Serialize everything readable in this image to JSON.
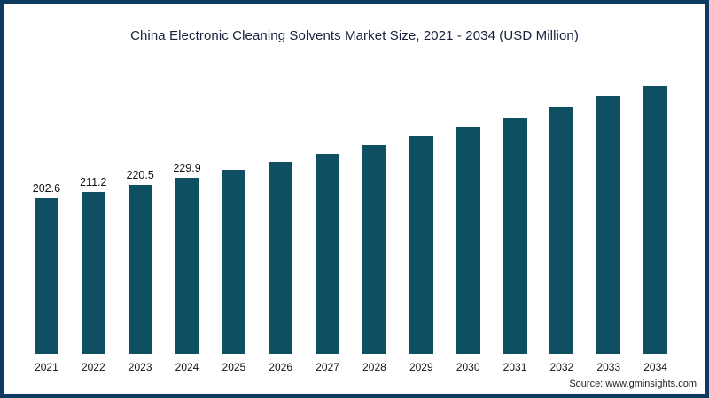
{
  "frame": {
    "border_color": "#0d3a5e",
    "background": "#ffffff"
  },
  "chart": {
    "title": "China Electronic Cleaning Solvents Market Size, 2021 - 2034 (USD Million)",
    "source": "Source: www.gminsights.com",
    "bar_color": "#0e4f62",
    "text_color": "#111111"
  },
  "chart_data": {
    "type": "bar",
    "title": "China Electronic Cleaning Solvents Market Size, 2021 - 2034 (USD Million)",
    "categories": [
      "2021",
      "2022",
      "2023",
      "2024",
      "2025",
      "2026",
      "2027",
      "2028",
      "2029",
      "2030",
      "2031",
      "2032",
      "2033",
      "2034"
    ],
    "values": [
      202.6,
      211.2,
      220.5,
      229.9,
      239.8,
      250.1,
      260.8,
      272.0,
      283.7,
      295.9,
      308.6,
      321.8,
      335.6,
      350.0
    ],
    "data_labels": [
      "202.6",
      "211.2",
      "220.5",
      "229.9",
      "",
      "",
      "",
      "",
      "",
      "",
      "",
      "",
      "",
      ""
    ],
    "xlabel": "",
    "ylabel": "USD Million",
    "ylim": [
      0,
      360
    ],
    "grid": false,
    "legend": "none",
    "bar_color": "#0e4f62"
  }
}
